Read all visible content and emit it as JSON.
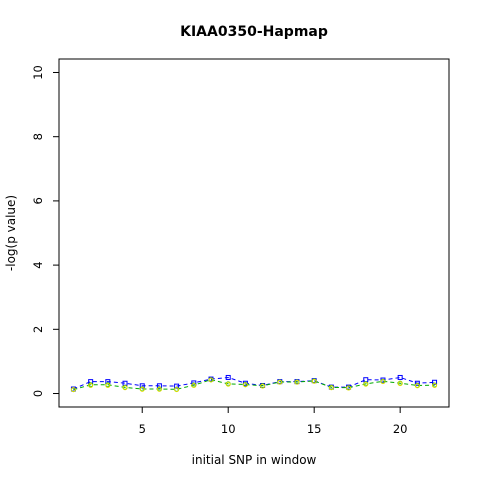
{
  "chart_data": {
    "type": "line",
    "title": "KIAA0350-Hapmap",
    "xlabel": "initial SNP in window",
    "ylabel": "-log(p value)",
    "xlim": [
      0.16,
      22.84
    ],
    "ylim": [
      -0.42,
      10.42
    ],
    "x_ticks": [
      5,
      10,
      15,
      20
    ],
    "y_ticks": [
      0,
      2,
      4,
      6,
      8,
      10
    ],
    "grid": false,
    "series": [
      {
        "color": "#0000ff",
        "marker": "square",
        "line": "dashed",
        "x": [
          1,
          2,
          3,
          4,
          5,
          6,
          7,
          8,
          9,
          10,
          11,
          12,
          13,
          14,
          15,
          16,
          17,
          18,
          19,
          20,
          21,
          22
        ],
        "values": [
          0.14,
          0.37,
          0.37,
          0.32,
          0.24,
          0.24,
          0.23,
          0.33,
          0.45,
          0.5,
          0.32,
          0.25,
          0.37,
          0.37,
          0.4,
          0.2,
          0.2,
          0.43,
          0.42,
          0.5,
          0.32,
          0.35
        ]
      },
      {
        "color": "#00aa00",
        "marker": "circle",
        "line": "dashed",
        "x": [
          1,
          2,
          3,
          4,
          5,
          6,
          7,
          8,
          9,
          10,
          11,
          12,
          13,
          14,
          15,
          16,
          17,
          18,
          19,
          20,
          21,
          22
        ],
        "values": [
          0.12,
          0.27,
          0.27,
          0.19,
          0.14,
          0.14,
          0.13,
          0.26,
          0.43,
          0.3,
          0.28,
          0.24,
          0.36,
          0.36,
          0.39,
          0.19,
          0.18,
          0.3,
          0.38,
          0.32,
          0.25,
          0.26
        ]
      },
      {
        "color": "#e0e000",
        "marker": "circle",
        "line": "none",
        "x": [
          1,
          2,
          3,
          4,
          5,
          6,
          7,
          8,
          9,
          10,
          11,
          12,
          13,
          14,
          15,
          16,
          17,
          18,
          19,
          20,
          21,
          22
        ],
        "values": [
          0.12,
          0.25,
          0.25,
          0.18,
          0.13,
          0.13,
          0.12,
          0.25,
          0.42,
          0.29,
          0.27,
          0.23,
          0.35,
          0.35,
          0.38,
          0.18,
          0.17,
          0.29,
          0.37,
          0.31,
          0.24,
          0.25
        ]
      }
    ]
  }
}
